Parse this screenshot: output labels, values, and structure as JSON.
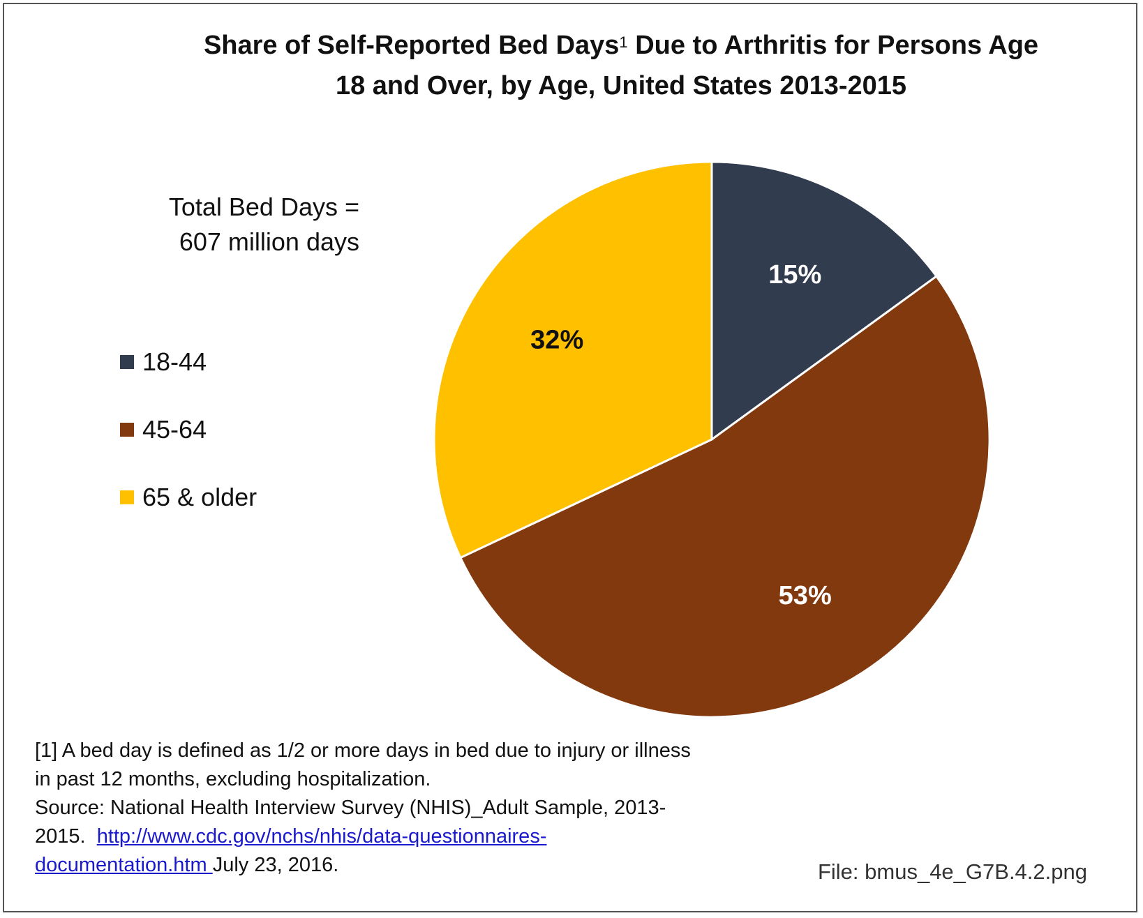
{
  "chart_data": {
    "type": "pie",
    "title_part1": "Share of Self-Reported Bed Days",
    "title_superscript": "1",
    "title_part2": " Due to Arthritis for Persons Age",
    "title_line2": "18 and Over, by Age, United States 2013-2015",
    "total_line1": "Total Bed Days =",
    "total_line2": "607 million days",
    "slices": [
      {
        "label": "18-44",
        "value": 15,
        "display": "15%",
        "color": "#323c4f",
        "label_color": "#ffffff"
      },
      {
        "label": "45-64",
        "value": 53,
        "display": "53%",
        "color": "#83390e",
        "label_color": "#ffffff"
      },
      {
        "label": "65 & older",
        "value": 32,
        "display": "32%",
        "color": "#ffc000",
        "label_color": "#111111"
      }
    ],
    "legend_position": "left"
  },
  "footnote": {
    "line1": "[1] A bed day is defined as 1/2 or more days in bed due to injury or illness",
    "line2": "in past 12 months, excluding hospitalization.",
    "line3": "Source: National Health Interview Survey (NHIS)_Adult Sample, 2013-",
    "line4_prefix": "2015.  ",
    "link_part1": "http://www.cdc.gov/nchs/nhis/data-questionnaires-",
    "link_part2": "documentation.htm ",
    "line5_suffix": "July 23, 2016."
  },
  "file_label": "File: bmus_4e_G7B.4.2.png"
}
